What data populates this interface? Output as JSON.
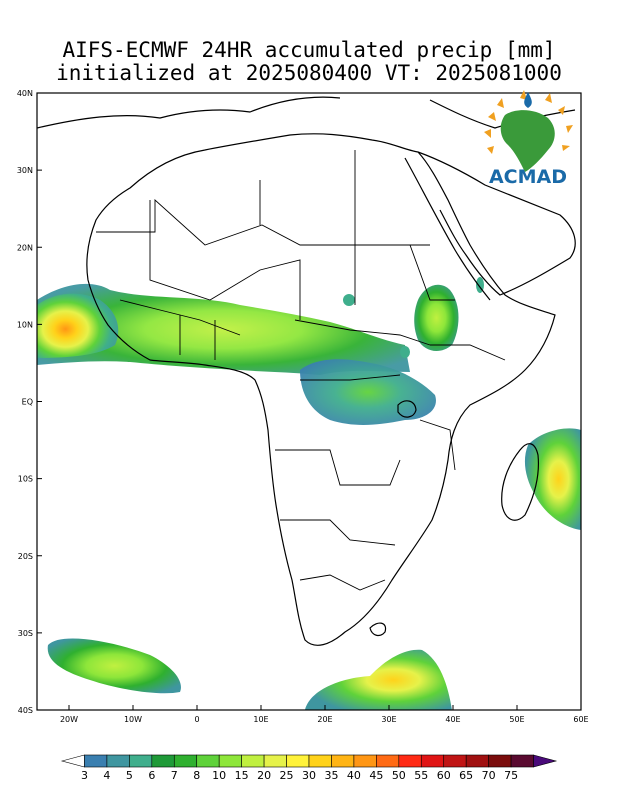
{
  "title": {
    "line1": "AIFS-ECMWF 24HR accumulated precip [mm]",
    "line2": "initialized at 2025080400 VT: 2025081000"
  },
  "map": {
    "lon_range": [
      -25,
      60
    ],
    "lat_range": [
      -40,
      40
    ],
    "lon_ticks": [
      {
        "value": -20,
        "label": "20W"
      },
      {
        "value": -10,
        "label": "10W"
      },
      {
        "value": 0,
        "label": "0"
      },
      {
        "value": 10,
        "label": "10E"
      },
      {
        "value": 20,
        "label": "20E"
      },
      {
        "value": 30,
        "label": "30E"
      },
      {
        "value": 40,
        "label": "40E"
      },
      {
        "value": 50,
        "label": "50E"
      },
      {
        "value": 60,
        "label": "60E"
      }
    ],
    "lat_ticks": [
      {
        "value": 40,
        "label": "40N"
      },
      {
        "value": 30,
        "label": "30N"
      },
      {
        "value": 20,
        "label": "20N"
      },
      {
        "value": 10,
        "label": "10N"
      },
      {
        "value": 0,
        "label": "EQ"
      },
      {
        "value": -10,
        "label": "10S"
      },
      {
        "value": -20,
        "label": "20S"
      },
      {
        "value": -30,
        "label": "30S"
      },
      {
        "value": -40,
        "label": "40S"
      }
    ]
  },
  "logo": {
    "text": "ACMAD",
    "color": "#1a6aa8",
    "accent": "#f0a020",
    "land_color": "#3a9a3a"
  },
  "colorbar": {
    "labels": [
      "3",
      "4",
      "5",
      "6",
      "7",
      "8",
      "10",
      "15",
      "20",
      "25",
      "30",
      "35",
      "40",
      "45",
      "50",
      "55",
      "60",
      "65",
      "70",
      "75"
    ],
    "colors": [
      "#ffffff",
      "#3a7fb0",
      "#3f96a0",
      "#3fae8c",
      "#1f9a38",
      "#2fb02f",
      "#5fd23a",
      "#8ee63a",
      "#c0f040",
      "#e6f24a",
      "#fff23a",
      "#ffd21a",
      "#ffb414",
      "#ff9614",
      "#ff6a14",
      "#ff2a14",
      "#e01414",
      "#c01414",
      "#a01010",
      "#7a0c0c",
      "#5a0a30",
      "#4a0a7a"
    ]
  }
}
